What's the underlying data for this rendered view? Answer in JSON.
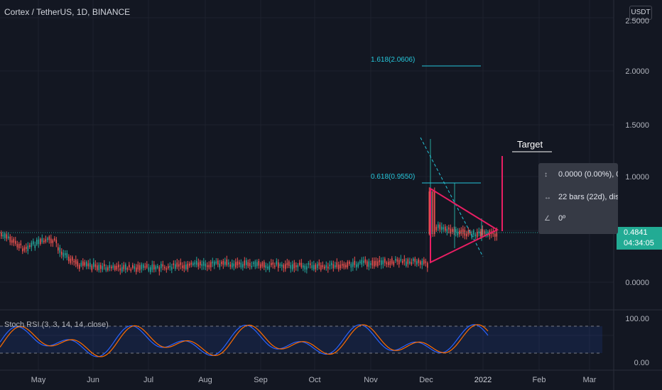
{
  "chart": {
    "title": "Cortex / TetherUS, 1D, BINANCE",
    "currency": "USDT",
    "y_axis_labels": [
      "2.5000",
      "2.0000",
      "1.5000",
      "1.0000",
      "0.0000"
    ],
    "price_tag": {
      "price": "0.4841",
      "countdown": "04:34:05"
    },
    "x_axis_labels": [
      "May",
      "Jun",
      "Jul",
      "Aug",
      "Sep",
      "Oct",
      "Nov",
      "Dec",
      "2022",
      "Feb",
      "Mar"
    ],
    "fib_labels": [
      "1.618(2.0606)",
      "0.618(0.9550)"
    ],
    "target_label": "Target",
    "measure": {
      "row1": "0.0000 (0.00%), 0",
      "row2": "22 bars (22d), dis",
      "row3": "0º"
    },
    "stoch_label": "Stoch RSI (3, 3, 14, 14, close)",
    "stoch_axis": [
      "100.00",
      "0.00"
    ],
    "colors": {
      "background": "#131722",
      "up": "#26a69a",
      "down": "#ef5350",
      "pattern": "#e91e63",
      "fib": "#26c6da",
      "k_line": "#2962ff",
      "d_line": "#ff6d00"
    }
  }
}
